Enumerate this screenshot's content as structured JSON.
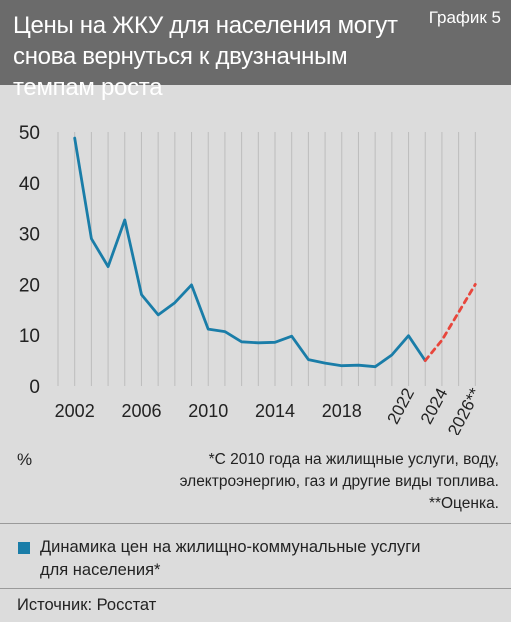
{
  "header": {
    "title_line1": "Цены на ЖКУ для населения могут",
    "title_line2": "снова вернуться к двузначным темпам роста",
    "graph_label": "График 5",
    "background_color": "#6b6b6b",
    "text_color": "#ffffff"
  },
  "chart_data": {
    "type": "line",
    "title": "",
    "xlabel": "",
    "ylabel": "%",
    "ylim": [
      0,
      50
    ],
    "yticks": [
      0,
      10,
      20,
      30,
      40,
      50
    ],
    "xlim": [
      2001,
      2027
    ],
    "xtick_labels": [
      {
        "value": 2002,
        "label": "2002",
        "rotated": false
      },
      {
        "value": 2006,
        "label": "2006",
        "rotated": false
      },
      {
        "value": 2010,
        "label": "2010",
        "rotated": false
      },
      {
        "value": 2014,
        "label": "2014",
        "rotated": false
      },
      {
        "value": 2018,
        "label": "2018",
        "rotated": false
      },
      {
        "value": 2022,
        "label": "2022",
        "rotated": true
      },
      {
        "value": 2024,
        "label": "2024",
        "rotated": true
      },
      {
        "value": 2026,
        "label": "2026**",
        "rotated": true
      }
    ],
    "grid": "vertical",
    "series": [
      {
        "name": "Динамика цен на жилищно-коммунальные услуги для населения*",
        "color": "#1a7da8",
        "style": "solid",
        "x": [
          2002,
          2003,
          2004,
          2005,
          2006,
          2007,
          2008,
          2009,
          2010,
          2011,
          2012,
          2013,
          2014,
          2015,
          2016,
          2017,
          2018,
          2019,
          2020,
          2021,
          2022,
          2023
        ],
        "y": [
          48.8,
          29.0,
          23.5,
          32.7,
          18.0,
          14.0,
          16.4,
          19.9,
          11.2,
          10.7,
          8.7,
          8.5,
          8.6,
          9.8,
          5.2,
          4.5,
          4.0,
          4.1,
          3.8,
          6.1,
          9.9,
          5.0
        ]
      },
      {
        "name": "Оценка",
        "color": "#e8463c",
        "style": "dashed",
        "x": [
          2023,
          2024,
          2025,
          2026
        ],
        "y": [
          5.0,
          9.0,
          14.5,
          20.0
        ]
      }
    ]
  },
  "unit_label": "%",
  "footnotes": [
    "*С 2010 года на жилищные услуги, воду,",
    "электроэнергию, газ и другие виды топлива.",
    "**Оценка."
  ],
  "legend": {
    "swatch_color": "#1a7da8",
    "line1": "Динамика цен на жилищно-коммунальные услуги",
    "line2": "для населения*"
  },
  "source": "Источник: Росстат"
}
